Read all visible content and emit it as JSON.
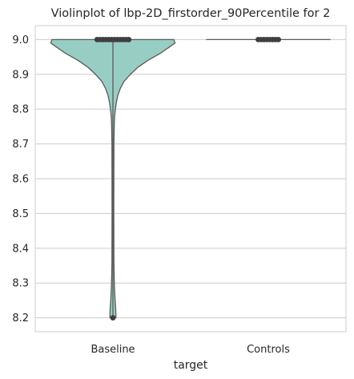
{
  "chart_data": {
    "type": "violin",
    "title": "Violinplot of lbp-2D_firstorder_90Percentile for 2",
    "xlabel": "target",
    "ylabel": "",
    "categories": [
      "Baseline",
      "Controls"
    ],
    "ylim": [
      8.16,
      9.04
    ],
    "yticks": [
      8.2,
      8.3,
      8.4,
      8.5,
      8.6,
      8.7,
      8.8,
      8.9,
      9.0
    ],
    "ytick_labels": [
      "8.2",
      "8.3",
      "8.4",
      "8.5",
      "8.6",
      "8.7",
      "8.8",
      "8.9",
      "9.0"
    ],
    "grid": true,
    "colors": {
      "violin_fill": "#98cdc3",
      "violin_edge": "#5a5a5a",
      "points": "#3f3f3f",
      "grid": "#cccccc",
      "frame": "#cccccc"
    },
    "violins": [
      {
        "category": "Baseline",
        "profile": [
          [
            9.0,
            0.49
          ],
          [
            8.99,
            0.5
          ],
          [
            8.98,
            0.46
          ],
          [
            8.96,
            0.38
          ],
          [
            8.94,
            0.28
          ],
          [
            8.92,
            0.2
          ],
          [
            8.9,
            0.14
          ],
          [
            8.88,
            0.09
          ],
          [
            8.86,
            0.06
          ],
          [
            8.84,
            0.04
          ],
          [
            8.82,
            0.028
          ],
          [
            8.8,
            0.02
          ],
          [
            8.78,
            0.014
          ],
          [
            8.76,
            0.011
          ],
          [
            8.7,
            0.008
          ],
          [
            8.5,
            0.007
          ],
          [
            8.36,
            0.008
          ],
          [
            8.3,
            0.011
          ],
          [
            8.26,
            0.016
          ],
          [
            8.23,
            0.022
          ],
          [
            8.21,
            0.024
          ],
          [
            8.2,
            0.024
          ]
        ],
        "points": [
          9.0,
          9.0,
          9.0,
          9.0,
          9.0,
          9.0,
          9.0,
          9.0,
          9.0,
          9.0,
          9.0,
          9.0,
          8.2
        ],
        "whisker": [
          8.2,
          9.0
        ]
      },
      {
        "category": "Controls",
        "profile": [
          [
            9.0,
            0.5
          ]
        ],
        "points": [
          9.0,
          9.0,
          9.0,
          9.0,
          9.0,
          9.0,
          9.0,
          9.0
        ],
        "whisker": [
          9.0,
          9.0
        ]
      }
    ]
  }
}
